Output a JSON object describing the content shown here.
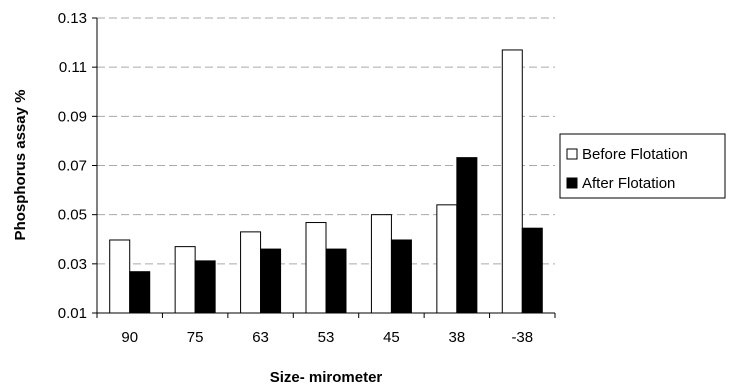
{
  "chart_data": {
    "type": "bar",
    "title": "",
    "xlabel": "Size- mirometer",
    "ylabel": "Phosphorus assay %",
    "categories": [
      "90",
      "75",
      "63",
      "53",
      "45",
      "38",
      "-38"
    ],
    "series": [
      {
        "name": "Before Flotation",
        "color": "#ffffff",
        "values": [
          0.0397,
          0.037,
          0.043,
          0.0468,
          0.05,
          0.054,
          0.117
        ]
      },
      {
        "name": "After Flotation",
        "color": "#000000",
        "values": [
          0.0268,
          0.0312,
          0.036,
          0.036,
          0.0397,
          0.0732,
          0.0445
        ]
      }
    ],
    "ylim": [
      0.01,
      0.13
    ],
    "yticks": [
      0.01,
      0.03,
      0.05,
      0.07,
      0.09,
      0.11,
      0.13
    ],
    "ytick_labels": [
      "0.01",
      "0.03",
      "0.05",
      "0.07",
      "0.09",
      "0.11",
      "0.13"
    ],
    "grid": true,
    "grid_style": "dashed",
    "legend_position": "right"
  }
}
